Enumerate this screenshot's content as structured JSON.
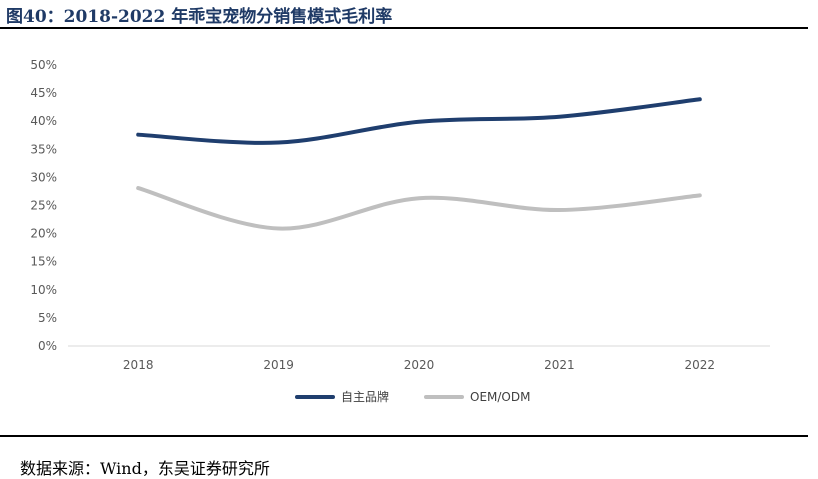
{
  "figure": {
    "title": "图40：2018-2022 年乖宝宠物分销售模式毛利率",
    "source": "数据来源：Wind，东吴证券研究所"
  },
  "chart_data": {
    "type": "line",
    "title": "",
    "xlabel": "",
    "ylabel": "",
    "categories": [
      "2018",
      "2019",
      "2020",
      "2021",
      "2022"
    ],
    "y_ticks": [
      "0%",
      "5%",
      "10%",
      "15%",
      "20%",
      "25%",
      "30%",
      "35%",
      "40%",
      "45%",
      "50%"
    ],
    "ylim": [
      0,
      50
    ],
    "smooth": true,
    "grid": false,
    "legend_position": "bottom",
    "series": [
      {
        "name": "自主品牌",
        "values": [
          37.6,
          36.2,
          39.9,
          40.8,
          43.9
        ],
        "color": "#1f3e6e"
      },
      {
        "name": "OEM/ODM",
        "values": [
          28.1,
          20.9,
          26.3,
          24.2,
          26.8
        ],
        "color": "#bfbfbf"
      }
    ]
  }
}
